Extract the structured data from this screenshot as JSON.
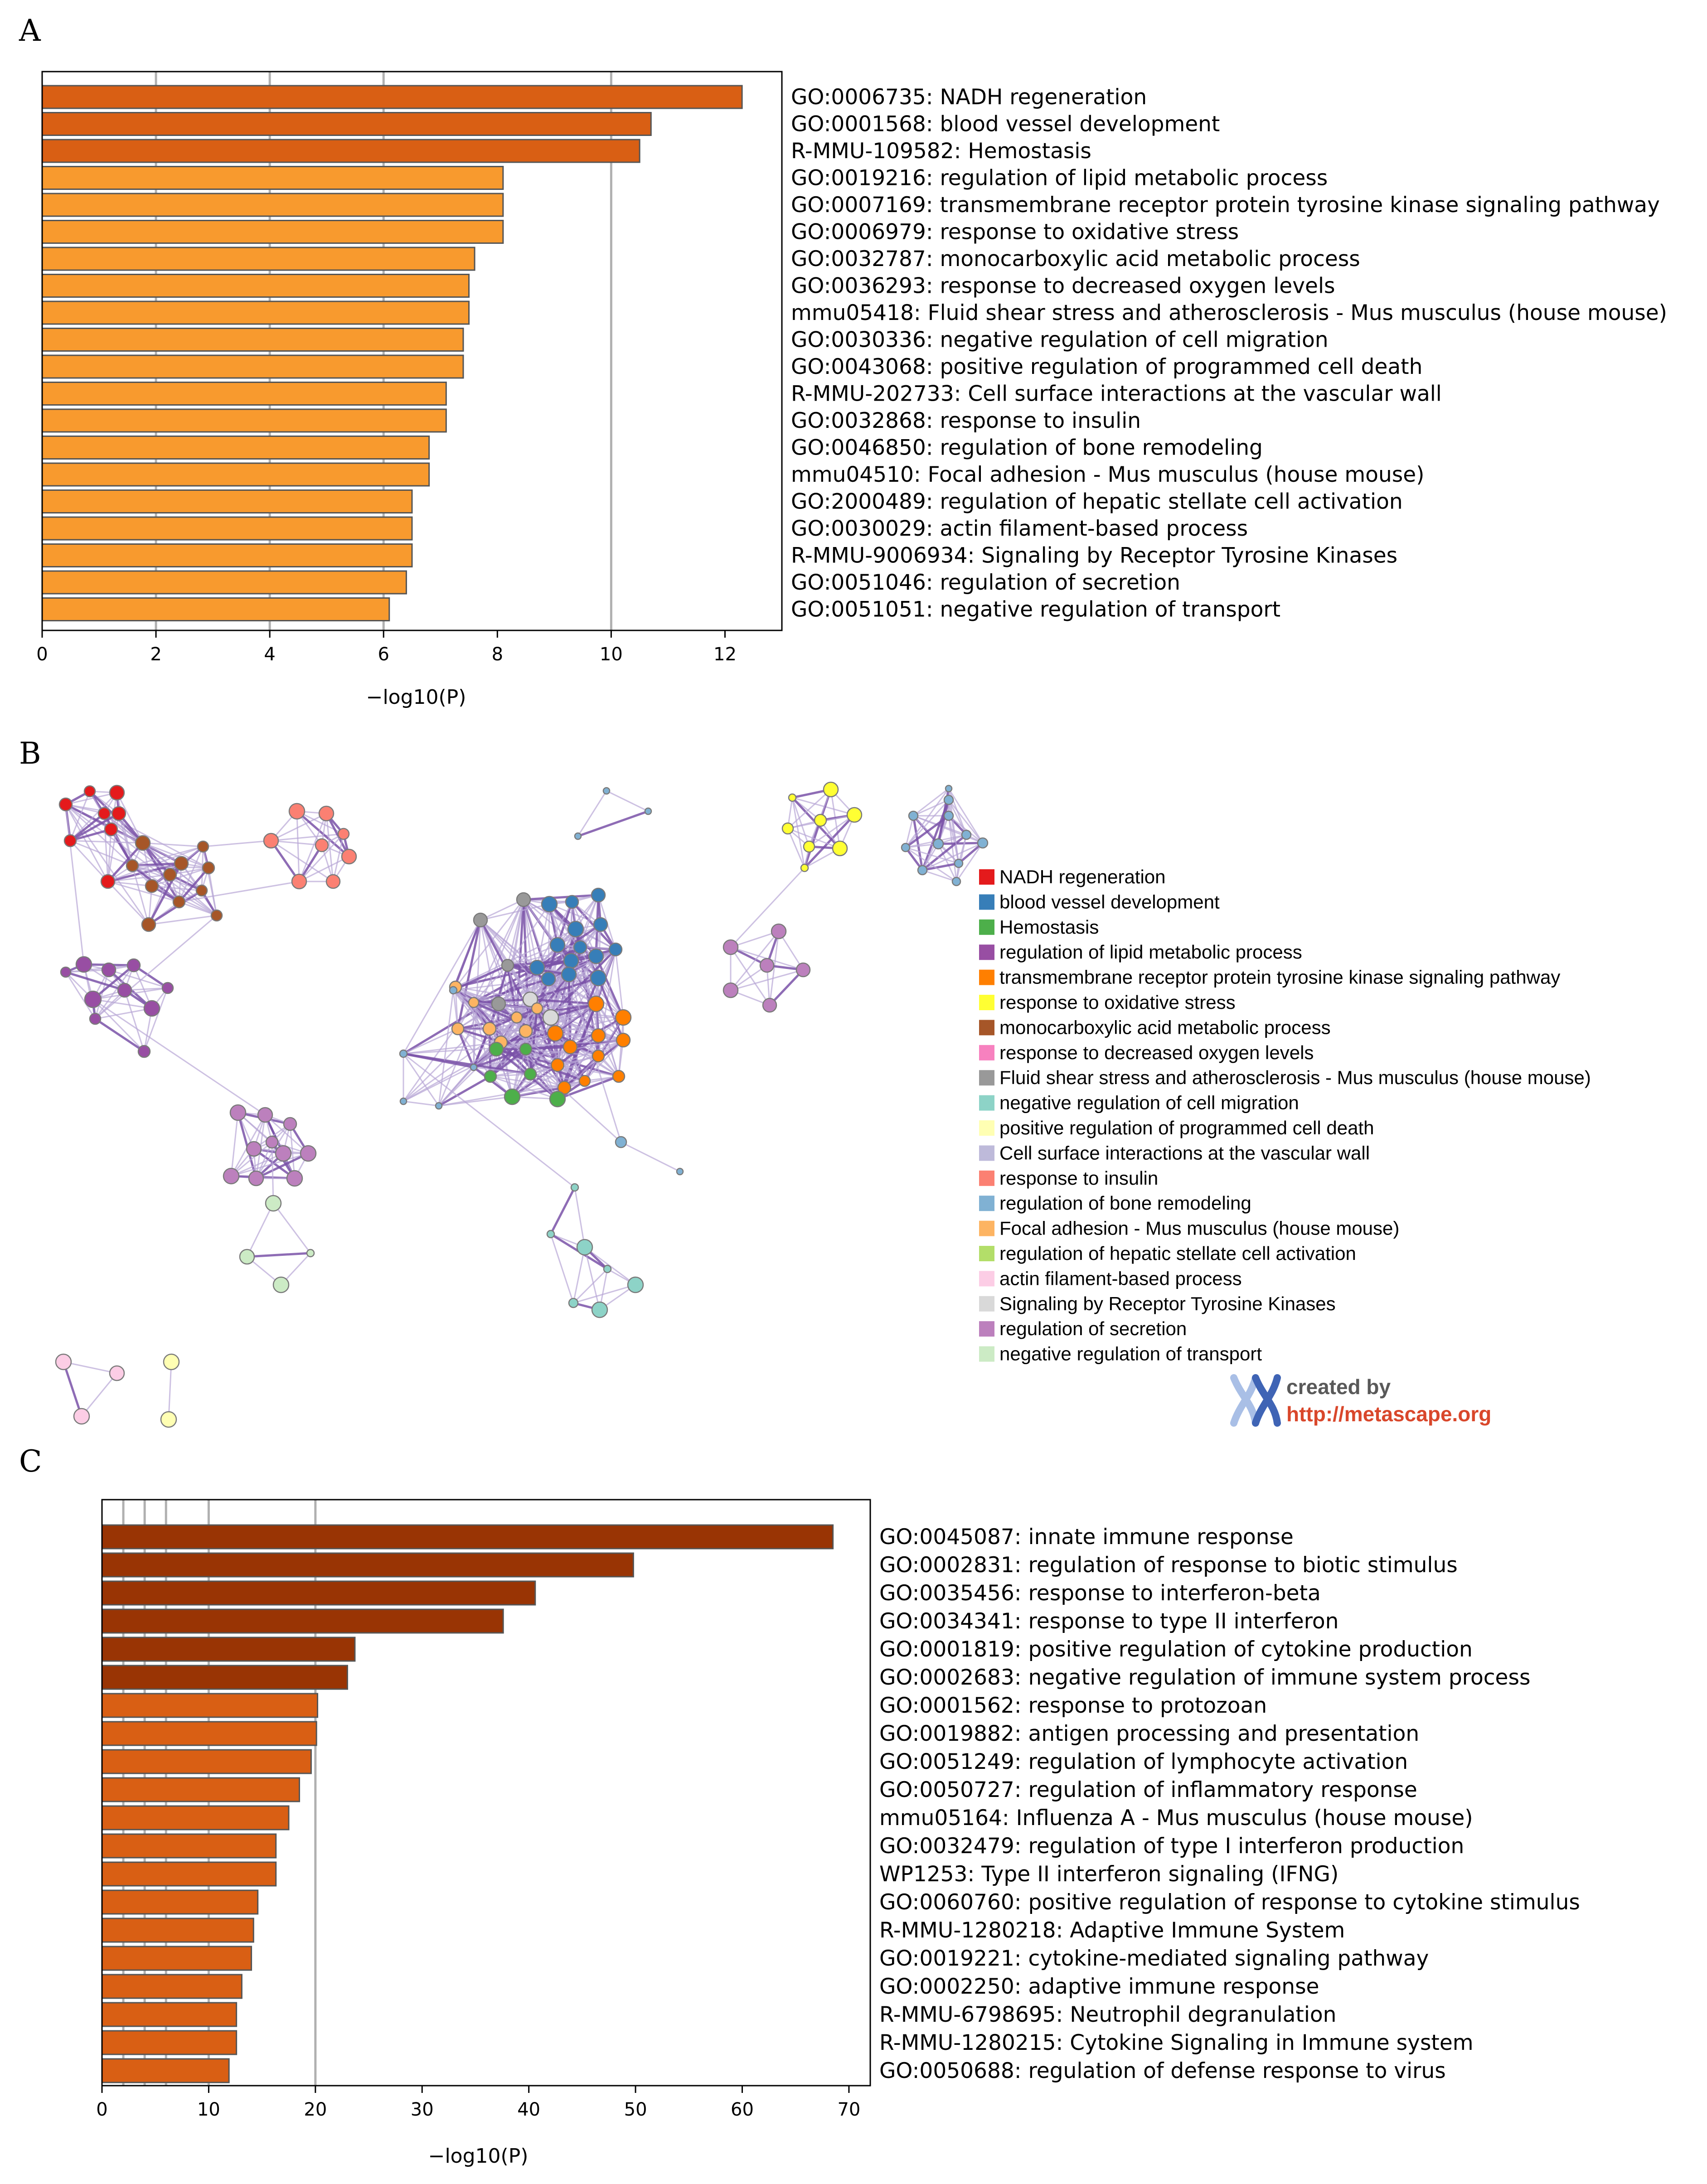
{
  "panels": {
    "a": {
      "letter": "A"
    },
    "b": {
      "letter": "B"
    },
    "c": {
      "letter": "C"
    }
  },
  "chart_data": [
    {
      "panel": "A",
      "type": "bar",
      "orientation": "horizontal",
      "xlabel": "−log10(P)",
      "xlim": [
        0,
        13
      ],
      "xticks": [
        0,
        2,
        4,
        6,
        8,
        10,
        12
      ],
      "gridlines": [
        2,
        4,
        6,
        10
      ],
      "categories": [
        "GO:0006735: NADH regeneration",
        "GO:0001568: blood vessel development",
        "R-MMU-109582: Hemostasis",
        "GO:0019216: regulation of lipid metabolic process",
        "GO:0007169: transmembrane receptor protein tyrosine kinase signaling pathway",
        "GO:0006979: response to oxidative stress",
        "GO:0032787: monocarboxylic acid metabolic process",
        "GO:0036293: response to decreased oxygen levels",
        "mmu05418: Fluid shear stress and atherosclerosis - Mus musculus (house mouse)",
        "GO:0030336: negative regulation of cell migration",
        "GO:0043068: positive regulation of programmed cell death",
        "R-MMU-202733: Cell surface interactions at the vascular wall",
        "GO:0032868: response to insulin",
        "GO:0046850: regulation of bone remodeling",
        "mmu04510: Focal adhesion - Mus musculus (house mouse)",
        "GO:2000489: regulation of hepatic stellate cell activation",
        "GO:0030029: actin filament-based process",
        "R-MMU-9006934: Signaling by Receptor Tyrosine Kinases",
        "GO:0051046: regulation of secretion",
        "GO:0051051: negative regulation of transport"
      ],
      "values": [
        12.3,
        10.7,
        10.5,
        8.1,
        8.1,
        8.1,
        7.6,
        7.5,
        7.5,
        7.4,
        7.4,
        7.1,
        7.1,
        6.8,
        6.8,
        6.5,
        6.5,
        6.5,
        6.4,
        6.1
      ],
      "bar_colors": [
        "#d95f14",
        "#d95f14",
        "#d95f14",
        "#f89a2e",
        "#f89a2e",
        "#f89a2e",
        "#f89a2e",
        "#f89a2e",
        "#f89a2e",
        "#f89a2e",
        "#f89a2e",
        "#f89a2e",
        "#f89a2e",
        "#f89a2e",
        "#f89a2e",
        "#f89a2e",
        "#f89a2e",
        "#f89a2e",
        "#f89a2e",
        "#f89a2e"
      ]
    },
    {
      "panel": "C",
      "type": "bar",
      "orientation": "horizontal",
      "xlabel": "−log10(P)",
      "xlim": [
        0,
        72
      ],
      "xticks": [
        0,
        10,
        20,
        30,
        40,
        50,
        60,
        70
      ],
      "gridlines": [
        2,
        4,
        6,
        10,
        20
      ],
      "categories": [
        "GO:0045087: innate immune response",
        "GO:0002831: regulation of response to biotic stimulus",
        "GO:0035456: response to interferon-beta",
        "GO:0034341: response to type II interferon",
        "GO:0001819: positive regulation of cytokine production",
        "GO:0002683: negative regulation of immune system process",
        "GO:0001562: response to protozoan",
        "GO:0019882: antigen processing and presentation",
        "GO:0051249: regulation of lymphocyte activation",
        "GO:0050727: regulation of inflammatory response",
        "mmu05164: Influenza A - Mus musculus (house mouse)",
        "GO:0032479: regulation of type I interferon production",
        "WP1253: Type II interferon signaling (IFNG)",
        "GO:0060760: positive regulation of response to cytokine stimulus",
        "R-MMU-1280218: Adaptive Immune System",
        "GO:0019221: cytokine-mediated signaling pathway",
        "GO:0002250: adaptive immune response",
        "R-MMU-6798695: Neutrophil degranulation",
        "R-MMU-1280215: Cytokine Signaling in Immune system",
        "GO:0050688: regulation of defense response to virus"
      ],
      "values": [
        68.5,
        49.8,
        40.6,
        37.6,
        23.7,
        23.0,
        20.2,
        20.1,
        19.6,
        18.5,
        17.5,
        16.3,
        16.3,
        14.6,
        14.2,
        14.0,
        13.1,
        12.6,
        12.6,
        11.9
      ],
      "bar_colors": [
        "#993404",
        "#993404",
        "#993404",
        "#993404",
        "#993404",
        "#993404",
        "#d95f14",
        "#d95f14",
        "#d95f14",
        "#d95f14",
        "#d95f14",
        "#d95f14",
        "#d95f14",
        "#d95f14",
        "#d95f14",
        "#d95f14",
        "#d95f14",
        "#d95f14",
        "#d95f14",
        "#d95f14"
      ]
    }
  ],
  "network": {
    "legend": [
      {
        "label": "NADH regeneration",
        "color": "#e41a1c"
      },
      {
        "label": "blood vessel development",
        "color": "#377eb8"
      },
      {
        "label": "Hemostasis",
        "color": "#4daf4a"
      },
      {
        "label": "regulation of lipid metabolic process",
        "color": "#984ea3"
      },
      {
        "label": "transmembrane receptor protein tyrosine kinase signaling pathway",
        "color": "#ff7f00"
      },
      {
        "label": "response to oxidative stress",
        "color": "#ffff33"
      },
      {
        "label": "monocarboxylic acid metabolic process",
        "color": "#a65628"
      },
      {
        "label": "response to decreased oxygen levels",
        "color": "#f781bf"
      },
      {
        "label": "Fluid shear stress and atherosclerosis - Mus musculus (house mouse)",
        "color": "#999999"
      },
      {
        "label": "negative regulation of cell migration",
        "color": "#8dd3c7"
      },
      {
        "label": "positive regulation of programmed cell death",
        "color": "#ffffb3"
      },
      {
        "label": "Cell surface interactions at the vascular wall",
        "color": "#bebada"
      },
      {
        "label": "response to insulin",
        "color": "#fb8072"
      },
      {
        "label": "regulation of bone remodeling",
        "color": "#80b1d3"
      },
      {
        "label": "Focal adhesion - Mus musculus (house mouse)",
        "color": "#fdb462"
      },
      {
        "label": "regulation of hepatic stellate cell activation",
        "color": "#b3de69"
      },
      {
        "label": "actin filament-based process",
        "color": "#fccde5"
      },
      {
        "label": "Signaling by Receptor Tyrosine Kinases",
        "color": "#d9d9d9"
      },
      {
        "label": "regulation of secretion",
        "color": "#bc80bd"
      },
      {
        "label": "negative regulation of transport",
        "color": "#ccebc5"
      }
    ],
    "credit": {
      "created_by": "created by",
      "url_text": "http://metascape.org"
    },
    "colors": {
      "edge": "#7a52a8",
      "edge_light": "#b8a6d6",
      "node_stroke": "#7a7a7a"
    }
  }
}
